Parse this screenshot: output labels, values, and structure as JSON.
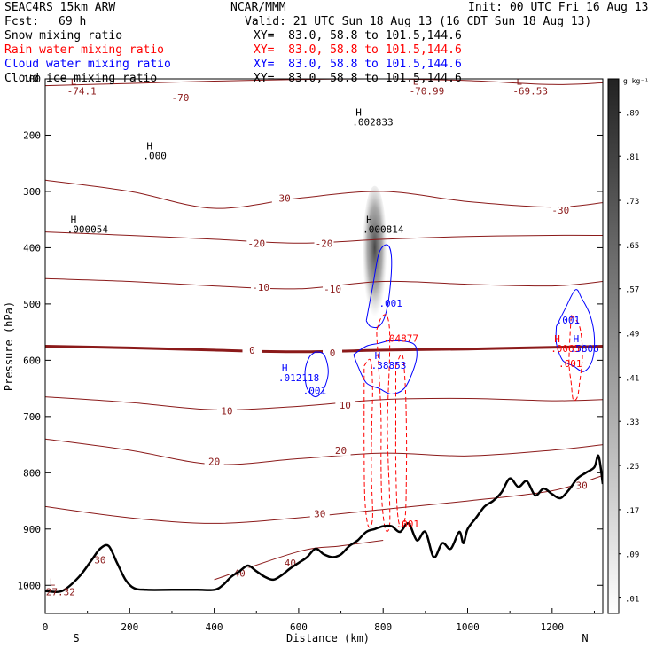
{
  "header": {
    "model": "SEAC4RS 15km ARW",
    "org": "NCAR/MMM",
    "init": "Init: 00 UTC Fri 16 Aug 13",
    "fcst_label": "Fcst:",
    "fcst_value": "69 h",
    "valid": "Valid: 21 UTC Sun 18 Aug 13 (16 CDT Sun 18 Aug 13)",
    "fields": [
      {
        "name": "Snow mixing ratio",
        "xy": "XY=  83.0, 58.8 to 101.5,144.6",
        "color": "#000000"
      },
      {
        "name": "Rain water mixing ratio",
        "xy": "XY=  83.0, 58.8 to 101.5,144.6",
        "color": "#ff0000"
      },
      {
        "name": "Cloud water mixing ratio",
        "xy": "XY=  83.0, 58.8 to 101.5,144.6",
        "color": "#0000ff"
      },
      {
        "name": "Cloud ice mixing ratio",
        "xy": "XY=  83.0, 58.8 to 101.5,144.6",
        "color": "#000000"
      }
    ]
  },
  "colors": {
    "temperature": "#8b1a1a",
    "freezing": "#8b1a1a",
    "rain": "#ff0000",
    "cloud_water": "#0000ff",
    "terrain": "#000000"
  },
  "chart_data": {
    "type": "heatmap",
    "xlabel": "Distance (km)",
    "ylabel": "Pressure (hPa)",
    "xlim": [
      0,
      1320
    ],
    "ylim": [
      1050,
      100
    ],
    "x_ticks": [
      0,
      200,
      400,
      600,
      800,
      1000,
      1200
    ],
    "y_ticks": [
      100,
      200,
      300,
      400,
      500,
      600,
      700,
      800,
      900,
      1000
    ],
    "x_end_labels": {
      "left": "S",
      "right": "N"
    },
    "colorbar": {
      "unit": "g kg⁻¹",
      "ticks": [
        ".89",
        ".81",
        ".73",
        ".65",
        ".57",
        ".49",
        ".41",
        ".33",
        ".25",
        ".17",
        ".09",
        ".01"
      ]
    },
    "terrain": [
      [
        0,
        1010
      ],
      [
        40,
        1010
      ],
      [
        80,
        985
      ],
      [
        110,
        955
      ],
      [
        130,
        935
      ],
      [
        150,
        930
      ],
      [
        170,
        960
      ],
      [
        190,
        990
      ],
      [
        210,
        1005
      ],
      [
        240,
        1008
      ],
      [
        300,
        1008
      ],
      [
        360,
        1008
      ],
      [
        400,
        1008
      ],
      [
        420,
        1000
      ],
      [
        440,
        985
      ],
      [
        460,
        975
      ],
      [
        480,
        965
      ],
      [
        500,
        975
      ],
      [
        520,
        985
      ],
      [
        540,
        990
      ],
      [
        560,
        982
      ],
      [
        580,
        970
      ],
      [
        600,
        960
      ],
      [
        620,
        950
      ],
      [
        640,
        935
      ],
      [
        660,
        945
      ],
      [
        680,
        950
      ],
      [
        700,
        945
      ],
      [
        720,
        930
      ],
      [
        740,
        920
      ],
      [
        760,
        905
      ],
      [
        780,
        900
      ],
      [
        800,
        895
      ],
      [
        820,
        895
      ],
      [
        840,
        905
      ],
      [
        860,
        890
      ],
      [
        880,
        920
      ],
      [
        900,
        905
      ],
      [
        920,
        950
      ],
      [
        940,
        925
      ],
      [
        960,
        935
      ],
      [
        980,
        905
      ],
      [
        990,
        925
      ],
      [
        1000,
        900
      ],
      [
        1020,
        880
      ],
      [
        1040,
        860
      ],
      [
        1060,
        850
      ],
      [
        1080,
        835
      ],
      [
        1100,
        810
      ],
      [
        1120,
        825
      ],
      [
        1140,
        815
      ],
      [
        1160,
        840
      ],
      [
        1180,
        828
      ],
      [
        1200,
        838
      ],
      [
        1220,
        845
      ],
      [
        1240,
        830
      ],
      [
        1260,
        810
      ],
      [
        1280,
        800
      ],
      [
        1300,
        790
      ],
      [
        1310,
        770
      ],
      [
        1320,
        820
      ]
    ],
    "temperature_contours": [
      {
        "label": "-70",
        "labels": [
          [
            320,
            133
          ]
        ],
        "line": [
          [
            0,
            112
          ],
          [
            200,
            108
          ],
          [
            400,
            104
          ],
          [
            600,
            101
          ],
          [
            800,
            100
          ],
          [
            1000,
            103
          ],
          [
            1200,
            110
          ],
          [
            1320,
            107
          ]
        ]
      },
      {
        "label": "-30",
        "labels": [
          [
            560,
            312
          ],
          [
            1220,
            333
          ]
        ],
        "line": [
          [
            0,
            280
          ],
          [
            200,
            300
          ],
          [
            400,
            330
          ],
          [
            600,
            312
          ],
          [
            800,
            300
          ],
          [
            1000,
            318
          ],
          [
            1200,
            328
          ],
          [
            1320,
            320
          ]
        ]
      },
      {
        "label": "-20",
        "labels": [
          [
            500,
            392
          ],
          [
            660,
            392
          ]
        ],
        "line": [
          [
            0,
            372
          ],
          [
            200,
            378
          ],
          [
            400,
            385
          ],
          [
            600,
            392
          ],
          [
            800,
            385
          ],
          [
            1000,
            380
          ],
          [
            1200,
            378
          ],
          [
            1320,
            378
          ]
        ]
      },
      {
        "label": "-10",
        "labels": [
          [
            510,
            470
          ],
          [
            680,
            473
          ]
        ],
        "line": [
          [
            0,
            455
          ],
          [
            200,
            460
          ],
          [
            400,
            468
          ],
          [
            600,
            473
          ],
          [
            800,
            460
          ],
          [
            1000,
            465
          ],
          [
            1200,
            468
          ],
          [
            1320,
            460
          ]
        ]
      },
      {
        "label": "0",
        "labels": [
          [
            490,
            582
          ],
          [
            680,
            587
          ]
        ],
        "line": [
          [
            0,
            575
          ],
          [
            200,
            578
          ],
          [
            400,
            582
          ],
          [
            600,
            585
          ],
          [
            800,
            582
          ],
          [
            1000,
            580
          ],
          [
            1200,
            577
          ],
          [
            1320,
            575
          ]
        ]
      },
      {
        "label": "10",
        "labels": [
          [
            430,
            690
          ],
          [
            710,
            680
          ]
        ],
        "line": [
          [
            0,
            665
          ],
          [
            200,
            675
          ],
          [
            400,
            688
          ],
          [
            600,
            682
          ],
          [
            800,
            670
          ],
          [
            1000,
            668
          ],
          [
            1200,
            672
          ],
          [
            1320,
            670
          ]
        ]
      },
      {
        "label": "20",
        "labels": [
          [
            400,
            780
          ],
          [
            700,
            760
          ]
        ],
        "line": [
          [
            0,
            740
          ],
          [
            200,
            760
          ],
          [
            400,
            785
          ],
          [
            600,
            775
          ],
          [
            800,
            765
          ],
          [
            1000,
            770
          ],
          [
            1200,
            760
          ],
          [
            1320,
            750
          ]
        ]
      },
      {
        "label": "30",
        "labels": [
          [
            130,
            955
          ],
          [
            650,
            873
          ],
          [
            1270,
            822
          ]
        ],
        "line": [
          [
            0,
            860
          ],
          [
            200,
            880
          ],
          [
            400,
            890
          ],
          [
            600,
            880
          ],
          [
            800,
            865
          ],
          [
            1000,
            850
          ],
          [
            1200,
            832
          ],
          [
            1320,
            805
          ]
        ]
      },
      {
        "label": "40",
        "labels": [
          [
            460,
            978
          ],
          [
            580,
            960
          ]
        ],
        "line": [
          [
            400,
            990
          ],
          [
            600,
            940
          ],
          [
            700,
            930
          ],
          [
            800,
            920
          ]
        ]
      }
    ],
    "annotations": [
      {
        "text": "H",
        "sub": ".000",
        "x": 240,
        "p": 225,
        "color": "#000000"
      },
      {
        "text": "H",
        "sub": ".002833",
        "x": 735,
        "p": 165,
        "color": "#000000"
      },
      {
        "text": "H",
        "sub": ".000054",
        "x": 60,
        "p": 356,
        "color": "#000000"
      },
      {
        "text": "H",
        "sub": ".000814",
        "x": 760,
        "p": 356,
        "color": "#000000"
      },
      {
        "text": "L",
        "sub": "-74.1",
        "x": 60,
        "p": 110,
        "color": "#8b1a1a"
      },
      {
        "text": "L",
        "sub": "-70.99",
        "x": 870,
        "p": 110,
        "color": "#8b1a1a"
      },
      {
        "text": "L",
        "sub": "-69.53",
        "x": 1115,
        "p": 110,
        "color": "#8b1a1a"
      },
      {
        "text": "L",
        "sub": "27.32",
        "x": 10,
        "p": 1000,
        "color": "#8b1a1a"
      },
      {
        "text": "H",
        "sub": ".012118",
        "x": 560,
        "p": 620,
        "color": "#0000ff"
      },
      {
        "text": ".001",
        "sub": "",
        "x": 610,
        "p": 660,
        "color": "#0000ff"
      },
      {
        "text": ".001",
        "sub": "",
        "x": 790,
        "p": 505,
        "color": "#0000ff"
      },
      {
        "text": "H",
        "sub": ".38853",
        "x": 780,
        "p": 598,
        "color": "#0000ff"
      },
      {
        "text": ".04877",
        "sub": "",
        "x": 800,
        "p": 567,
        "color": "#ff0000"
      },
      {
        "text": ".001",
        "sub": "",
        "x": 1210,
        "p": 535,
        "color": "#0000ff"
      },
      {
        "text": "H",
        "sub": ".0065",
        "x": 1205,
        "p": 568,
        "color": "#ff0000"
      },
      {
        "text": "H",
        "sub": ".5806",
        "x": 1250,
        "p": 568,
        "color": "#0000ff"
      },
      {
        "text": ".001",
        "sub": "",
        "x": 1215,
        "p": 612,
        "color": "#ff0000"
      },
      {
        "text": ".001",
        "sub": "",
        "x": 830,
        "p": 897,
        "color": "#ff0000"
      }
    ],
    "snow_column": {
      "x_center": 780,
      "p_top": 290,
      "p_bottom": 535,
      "max_value": 0.89
    },
    "cloud_water_contours": [
      [
        [
          640,
          585
        ],
        [
          660,
          590
        ],
        [
          670,
          620
        ],
        [
          660,
          650
        ],
        [
          640,
          665
        ],
        [
          620,
          650
        ],
        [
          615,
          620
        ],
        [
          625,
          595
        ],
        [
          640,
          585
        ]
      ],
      [
        [
          760,
          530
        ],
        [
          775,
          470
        ],
        [
          790,
          410
        ],
        [
          810,
          395
        ],
        [
          820,
          420
        ],
        [
          815,
          480
        ],
        [
          805,
          520
        ],
        [
          790,
          540
        ],
        [
          770,
          540
        ],
        [
          760,
          530
        ]
      ],
      [
        [
          730,
          590
        ],
        [
          760,
          575
        ],
        [
          790,
          570
        ],
        [
          820,
          565
        ],
        [
          870,
          570
        ],
        [
          880,
          590
        ],
        [
          870,
          620
        ],
        [
          850,
          650
        ],
        [
          820,
          660
        ],
        [
          790,
          650
        ],
        [
          760,
          640
        ],
        [
          740,
          610
        ],
        [
          730,
          590
        ]
      ],
      [
        [
          1210,
          540
        ],
        [
          1230,
          510
        ],
        [
          1255,
          475
        ],
        [
          1270,
          490
        ],
        [
          1290,
          520
        ],
        [
          1300,
          560
        ],
        [
          1295,
          600
        ],
        [
          1275,
          620
        ],
        [
          1250,
          610
        ],
        [
          1225,
          600
        ],
        [
          1210,
          570
        ],
        [
          1210,
          540
        ]
      ]
    ],
    "rain_contours": [
      [
        [
          785,
          545
        ],
        [
          795,
          525
        ],
        [
          808,
          520
        ],
        [
          815,
          545
        ],
        [
          815,
          600
        ],
        [
          812,
          660
        ],
        [
          810,
          720
        ],
        [
          812,
          780
        ],
        [
          815,
          840
        ],
        [
          815,
          895
        ],
        [
          805,
          900
        ],
        [
          797,
          850
        ],
        [
          795,
          780
        ],
        [
          795,
          700
        ],
        [
          790,
          620
        ],
        [
          785,
          560
        ],
        [
          785,
          545
        ]
      ],
      [
        [
          755,
          610
        ],
        [
          770,
          600
        ],
        [
          775,
          650
        ],
        [
          773,
          720
        ],
        [
          772,
          800
        ],
        [
          775,
          880
        ],
        [
          765,
          895
        ],
        [
          757,
          850
        ],
        [
          755,
          760
        ],
        [
          755,
          680
        ],
        [
          755,
          610
        ]
      ],
      [
        [
          830,
          610
        ],
        [
          845,
          590
        ],
        [
          852,
          640
        ],
        [
          855,
          720
        ],
        [
          855,
          800
        ],
        [
          852,
          880
        ],
        [
          840,
          895
        ],
        [
          833,
          860
        ],
        [
          830,
          780
        ],
        [
          830,
          700
        ],
        [
          830,
          610
        ]
      ],
      [
        [
          1245,
          520
        ],
        [
          1265,
          540
        ],
        [
          1272,
          590
        ],
        [
          1265,
          640
        ],
        [
          1260,
          665
        ],
        [
          1250,
          670
        ],
        [
          1245,
          640
        ],
        [
          1240,
          600
        ],
        [
          1245,
          520
        ]
      ]
    ]
  }
}
